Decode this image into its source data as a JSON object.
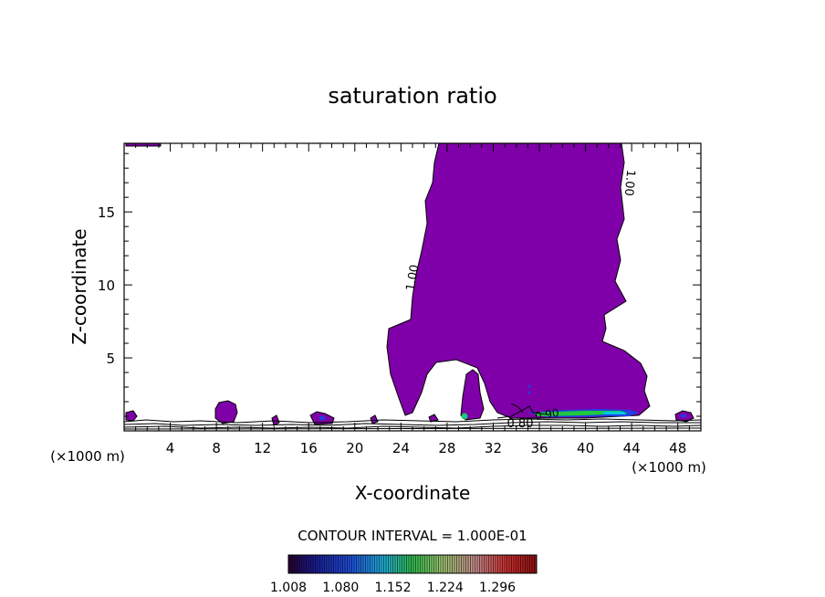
{
  "chart_data": {
    "type": "heatmap",
    "title": "saturation ratio",
    "xlabel": "X-coordinate",
    "ylabel": "Z-coordinate",
    "x_units": "(×1000 m)",
    "x_units_right": "(×1000 m)",
    "xlim": [
      0,
      50
    ],
    "ylim": [
      0,
      19.7
    ],
    "xticks_major": [
      4,
      8,
      12,
      16,
      20,
      24,
      28,
      32,
      36,
      40,
      44,
      48
    ],
    "yticks_major": [
      5,
      10,
      15
    ],
    "contour_labels": [
      "1.00",
      "1.00",
      "0.80",
      "0.90"
    ],
    "contour_interval_text": "CONTOUR INTERVAL = 1.000E-01",
    "colorbar": {
      "min": 1.008,
      "max": 1.35,
      "tick_labels": [
        "1.008",
        "1.080",
        "1.152",
        "1.224",
        "1.296"
      ]
    },
    "colors": {
      "supersaturated_fill": "#7f00a8",
      "contour_line": "#000000",
      "cyan": "#00c8e0",
      "green": "#20c840"
    }
  }
}
